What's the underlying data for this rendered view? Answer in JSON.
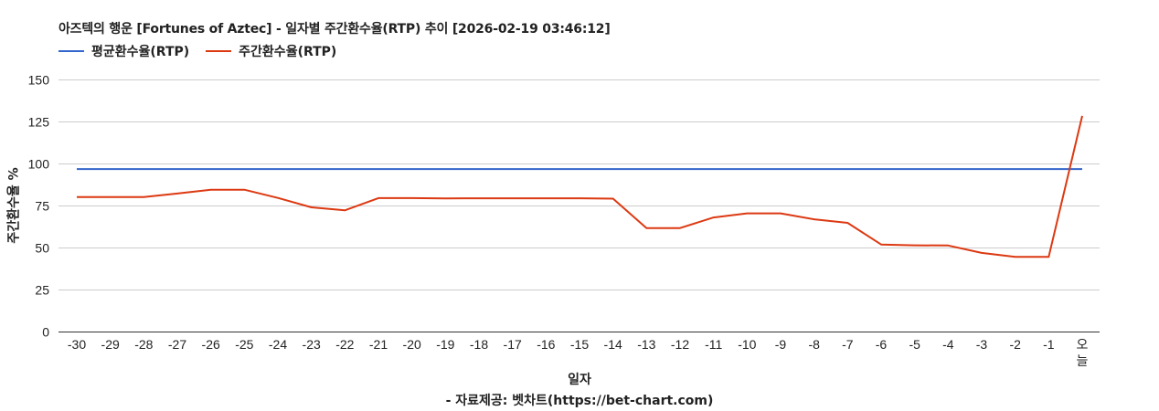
{
  "title": "아즈텍의 행운 [Fortunes of Aztec] - 일자별 주간환수율(RTP) 추이 [2026-02-19 03:46:12]",
  "legend": [
    {
      "label": "평균환수율(RTP)",
      "color": "#3366cc"
    },
    {
      "label": "주간환수율(RTP)",
      "color": "#dc3912"
    }
  ],
  "y_axis_title": "주간환수율 %",
  "x_axis_title": "일자",
  "source": "- 자료제공: 벳차트(https://bet-chart.com)",
  "colors": {
    "average": "#3366cc",
    "weekly": "#dc3912",
    "grid": "#cccccc",
    "baseline": "#333333",
    "text": "#222222"
  },
  "chart_data": {
    "type": "line",
    "title": "아즈텍의 행운 [Fortunes of Aztec] - 일자별 주간환수율(RTP) 추이 [2026-02-19 03:46:12]",
    "xlabel": "일자",
    "ylabel": "주간환수율 %",
    "ylim": [
      0,
      150
    ],
    "yticks": [
      0,
      25,
      50,
      75,
      100,
      125,
      150
    ],
    "grid": true,
    "legend_position": "top",
    "categories": [
      "-30",
      "-29",
      "-28",
      "-27",
      "-26",
      "-25",
      "-24",
      "-23",
      "-22",
      "-21",
      "-20",
      "-19",
      "-18",
      "-17",
      "-16",
      "-15",
      "-14",
      "-13",
      "-12",
      "-11",
      "-10",
      "-9",
      "-8",
      "-7",
      "-6",
      "-5",
      "-4",
      "-3",
      "-2",
      "-1",
      "오늘"
    ],
    "series": [
      {
        "name": "평균환수율(RTP)",
        "color": "#3366cc",
        "values": [
          96.7,
          96.7,
          96.7,
          96.7,
          96.7,
          96.7,
          96.7,
          96.7,
          96.7,
          96.7,
          96.7,
          96.7,
          96.7,
          96.7,
          96.7,
          96.7,
          96.7,
          96.7,
          96.7,
          96.7,
          96.7,
          96.7,
          96.7,
          96.7,
          96.7,
          96.7,
          96.7,
          96.7,
          96.7,
          96.7,
          96.7
        ]
      },
      {
        "name": "주간환수율(RTP)",
        "color": "#dc3912",
        "values": [
          80.0,
          80.0,
          80.0,
          82.1,
          84.4,
          84.4,
          79.5,
          73.9,
          72.1,
          79.4,
          79.4,
          79.2,
          79.3,
          79.3,
          79.3,
          79.3,
          79.1,
          61.6,
          61.6,
          67.9,
          70.3,
          70.3,
          66.8,
          64.7,
          51.8,
          51.3,
          51.2,
          46.8,
          44.4,
          44.4,
          128.3
        ]
      }
    ]
  }
}
